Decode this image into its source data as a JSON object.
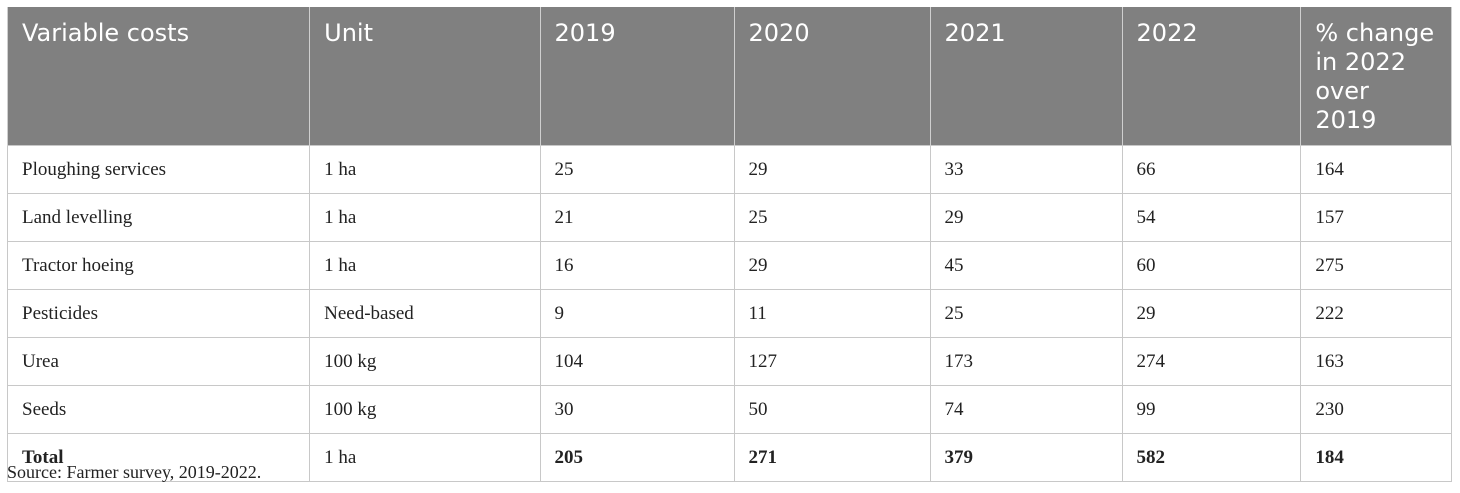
{
  "table": {
    "headers": [
      "Variable costs",
      "Unit",
      "2019",
      "2020",
      "2021",
      "2022",
      "% change in 2022 over 2019"
    ],
    "rows": [
      [
        "Ploughing services",
        "1 ha",
        "25",
        "29",
        "33",
        "66",
        "164"
      ],
      [
        "Land levelling",
        "1 ha",
        "21",
        "25",
        "29",
        "54",
        "157"
      ],
      [
        "Tractor hoeing",
        "1 ha",
        "16",
        "29",
        "45",
        "60",
        "275"
      ],
      [
        "Pesticides",
        "Need-based",
        "9",
        "11",
        "25",
        "29",
        "222"
      ],
      [
        "Urea",
        "100 kg",
        "104",
        "127",
        "173",
        "274",
        "163"
      ],
      [
        "Seeds",
        "100 kg",
        "30",
        "50",
        "74",
        "99",
        "230"
      ],
      [
        "Total",
        "1 ha",
        "205",
        "271",
        "379",
        "582",
        "184"
      ]
    ]
  },
  "footer": {
    "source": "Source: Farmer survey, 2019-2022."
  }
}
